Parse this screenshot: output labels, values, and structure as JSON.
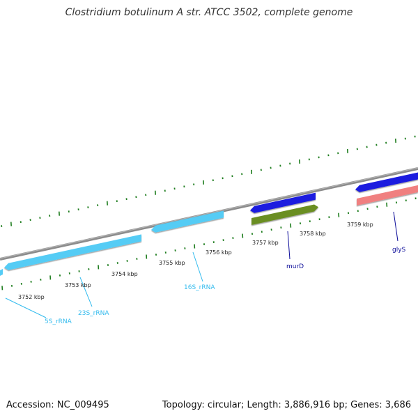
{
  "title": "Clostridium botulinum A str. ATCC 3502, complete genome",
  "footer": {
    "accession": "Accession: NC_009495",
    "topology": "Topology: circular; Length: 3,886,916 bp; Genes: 3,686"
  },
  "colors": {
    "backbone": "#8c8c8c",
    "tick_green": "#1e7d1e",
    "rrna": "#55ccf5",
    "rrna_label": "#33bbee",
    "murD": "#1a1adf",
    "murD_label": "#0b0b99",
    "green_gene": "#6b8e23",
    "pink_gene": "#f08080",
    "blue_gene": "#1a1adf"
  },
  "ticks": {
    "labels": [
      "3752 kbp",
      "3753 kbp",
      "3754 kbp",
      "3755 kbp",
      "3756 kbp",
      "3757 kbp",
      "3758 kbp",
      "3759 kbp"
    ]
  },
  "genes": [
    {
      "name": "5S_rRNA",
      "labeled": true,
      "strand": "-",
      "type": "rRNA"
    },
    {
      "name": "23S_rRNA",
      "labeled": true,
      "strand": "-",
      "type": "rRNA"
    },
    {
      "name": "16S_rRNA",
      "labeled": true,
      "strand": "-",
      "type": "rRNA"
    },
    {
      "name": "murD",
      "labeled": true,
      "strand": "-",
      "type": "CDS"
    },
    {
      "name": "",
      "labeled": false,
      "strand": "+",
      "type": "CDS"
    },
    {
      "name": "",
      "labeled": false,
      "strand": "-",
      "type": "CDS"
    },
    {
      "name": "glyS",
      "labeled": true,
      "strand": "+",
      "type": "CDS"
    }
  ]
}
